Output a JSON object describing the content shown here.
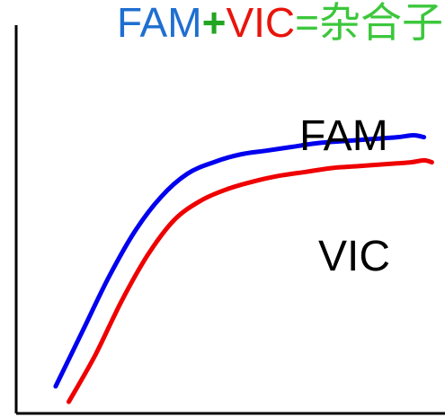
{
  "chart_data": {
    "type": "line",
    "title_parts": [
      {
        "text": "FAM",
        "color": "#1f6fd0"
      },
      {
        "text": "+",
        "color": "#22a622"
      },
      {
        "text": "VIC",
        "color": "#e8140c"
      },
      {
        "text": "=杂合子",
        "color": "#3cc73c"
      }
    ],
    "xlabel": "",
    "ylabel": "",
    "series": [
      {
        "name": "FAM",
        "color": "#0000ee",
        "points": [
          [
            0,
            0.0
          ],
          [
            1,
            0.14
          ],
          [
            2,
            0.28
          ],
          [
            3,
            0.4
          ],
          [
            4,
            0.49
          ],
          [
            5,
            0.55
          ],
          [
            6,
            0.58
          ],
          [
            7,
            0.6
          ],
          [
            8,
            0.61
          ],
          [
            9,
            0.62
          ],
          [
            10,
            0.63
          ],
          [
            11,
            0.635
          ],
          [
            12,
            0.64
          ],
          [
            13,
            0.645
          ],
          [
            13.6,
            0.65
          ],
          [
            14,
            0.645
          ]
        ]
      },
      {
        "name": "VIC",
        "color": "#ee0000",
        "points": [
          [
            0.5,
            -0.04
          ],
          [
            1.5,
            0.08
          ],
          [
            2.5,
            0.22
          ],
          [
            3.5,
            0.34
          ],
          [
            4.5,
            0.43
          ],
          [
            5.5,
            0.48
          ],
          [
            6.5,
            0.51
          ],
          [
            7.5,
            0.53
          ],
          [
            8.5,
            0.545
          ],
          [
            9.5,
            0.555
          ],
          [
            10.5,
            0.565
          ],
          [
            11.5,
            0.57
          ],
          [
            12.5,
            0.575
          ],
          [
            13.5,
            0.58
          ],
          [
            14,
            0.585
          ],
          [
            14.3,
            0.58
          ]
        ]
      }
    ],
    "xlim": [
      -1.5,
      14.8
    ],
    "ylim": [
      -0.07,
      1.0
    ],
    "grid": false,
    "legend": "none"
  }
}
